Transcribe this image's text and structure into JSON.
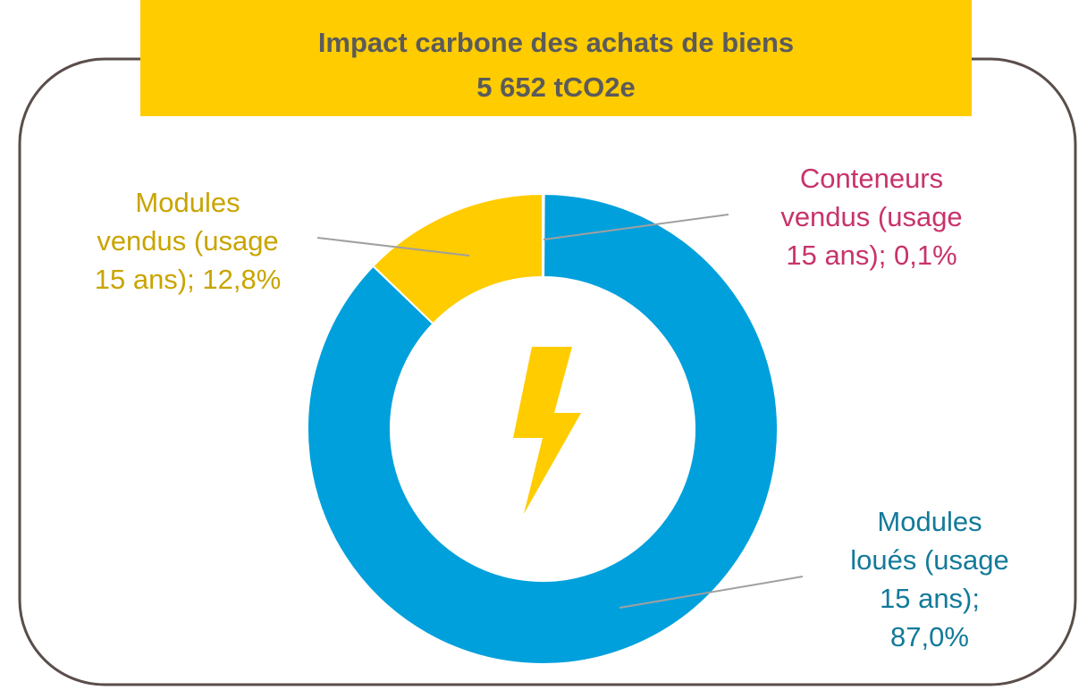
{
  "chart_data": {
    "type": "donut",
    "title": "Impact carbone des achats de biens",
    "subtitle": "5 652 tCO2e",
    "values": [
      0.1,
      87.0,
      12.8
    ],
    "value_labels": [
      "Conteneurs\nvendus (usage\n15 ans); 0,1%",
      "Modules\nloués (usage\n15 ans);\n87,0%",
      "Modules\nvendus (usage\n15 ans); 12,8%"
    ],
    "colors": [
      "#c8336b",
      "#00a0dc",
      "#ffcc00"
    ],
    "label_colors": [
      "#c8336b",
      "#137a9a",
      "#c9a400"
    ]
  }
}
